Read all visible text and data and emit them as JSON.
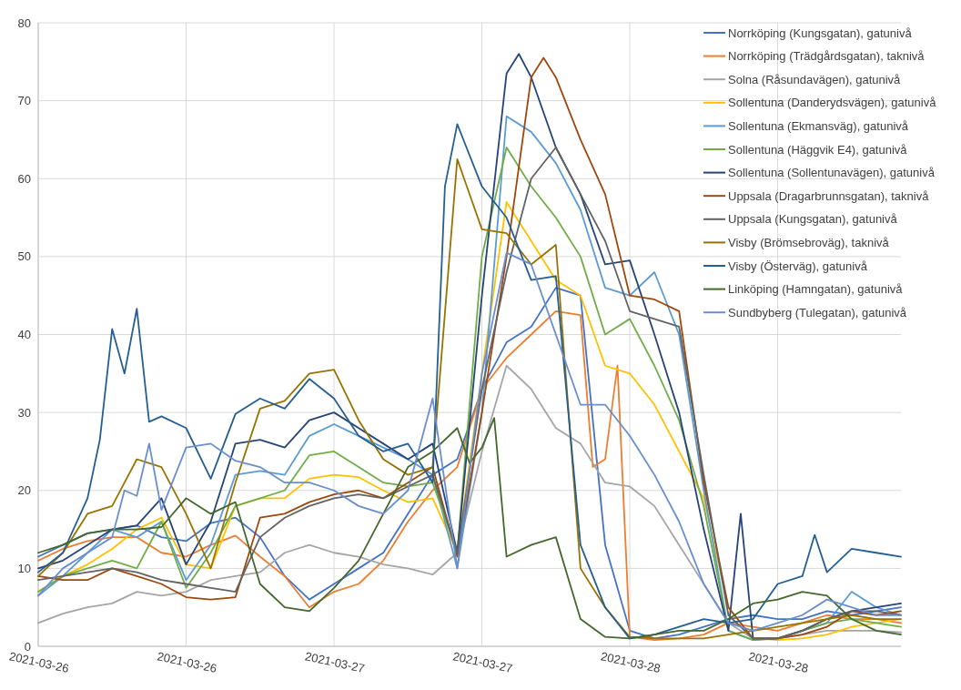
{
  "chart_data": {
    "type": "line",
    "x": [
      "2021-03-26T00:00",
      "2021-03-26T02:00",
      "2021-03-26T04:00",
      "2021-03-26T06:00",
      "2021-03-26T08:00",
      "2021-03-26T10:00",
      "2021-03-26T12:00",
      "2021-03-26T14:00",
      "2021-03-26T16:00",
      "2021-03-26T18:00",
      "2021-03-26T20:00",
      "2021-03-26T22:00",
      "2021-03-27T00:00",
      "2021-03-27T02:00",
      "2021-03-27T04:00",
      "2021-03-27T06:00",
      "2021-03-27T08:00",
      "2021-03-27T10:00",
      "2021-03-27T12:00",
      "2021-03-27T14:00",
      "2021-03-27T16:00",
      "2021-03-27T18:00",
      "2021-03-27T20:00",
      "2021-03-27T22:00",
      "2021-03-28T00:00",
      "2021-03-28T02:00",
      "2021-03-28T04:00",
      "2021-03-28T06:00",
      "2021-03-28T08:00",
      "2021-03-28T10:00",
      "2021-03-28T12:00",
      "2021-03-28T14:00",
      "2021-03-28T16:00",
      "2021-03-28T18:00",
      "2021-03-28T20:00",
      "2021-03-28T22:00"
    ],
    "xlim": [
      "2021-03-26T00:00",
      "2021-03-28T22:00"
    ],
    "xticks": [
      {
        "value": "2021-03-26T00:00",
        "label": "2021-03-26"
      },
      {
        "value": "2021-03-26T12:00",
        "label": "2021-03-26"
      },
      {
        "value": "2021-03-27T00:00",
        "label": "2021-03-27"
      },
      {
        "value": "2021-03-27T12:00",
        "label": "2021-03-27"
      },
      {
        "value": "2021-03-28T00:00",
        "label": "2021-03-28"
      },
      {
        "value": "2021-03-28T12:00",
        "label": "2021-03-28"
      }
    ],
    "ylim": [
      0,
      80
    ],
    "yticks": [
      0,
      10,
      20,
      30,
      40,
      50,
      60,
      70,
      80
    ],
    "grid": true,
    "legend": "top right",
    "series": [
      {
        "name": "Norrköping (Kungsgatan), gatunivå",
        "color": "#4472c4",
        "values": [
          11.5,
          13,
          14.5,
          15,
          15.5,
          14,
          13.5,
          15.8,
          16.5,
          14,
          9,
          6,
          8,
          10,
          12,
          17,
          22,
          24,
          33,
          39,
          41,
          46,
          45,
          13,
          2,
          1,
          1.5,
          2.5,
          3.5,
          4,
          3.5,
          3.5,
          4.5,
          4,
          4.5,
          5
        ]
      },
      {
        "name": "Norrköping (Trädgårdsgatan), taknivå",
        "color": "#ed7d31",
        "x": [
          "2021-03-26T00:00",
          "2021-03-26T02:00",
          "2021-03-26T04:00",
          "2021-03-26T06:00",
          "2021-03-26T08:00",
          "2021-03-26T10:00",
          "2021-03-26T12:00",
          "2021-03-26T14:00",
          "2021-03-26T16:00",
          "2021-03-26T18:00",
          "2021-03-26T20:00",
          "2021-03-26T22:00",
          "2021-03-27T00:00",
          "2021-03-27T02:00",
          "2021-03-27T04:00",
          "2021-03-27T06:00",
          "2021-03-27T08:00",
          "2021-03-27T10:00",
          "2021-03-27T12:00",
          "2021-03-27T14:00",
          "2021-03-27T16:00",
          "2021-03-27T18:00",
          "2021-03-27T20:00",
          "2021-03-27T21:00",
          "2021-03-27T22:00",
          "2021-03-27T23:00",
          "2021-03-28T00:00",
          "2021-03-28T02:00",
          "2021-03-28T04:00",
          "2021-03-28T06:00",
          "2021-03-28T08:00",
          "2021-03-28T10:00",
          "2021-03-28T12:00",
          "2021-03-28T14:00",
          "2021-03-28T16:00",
          "2021-03-28T18:00",
          "2021-03-28T20:00",
          "2021-03-28T22:00"
        ],
        "values": [
          11,
          12.5,
          13.5,
          14,
          14,
          12,
          11.5,
          13,
          14.2,
          11.5,
          9,
          5,
          7,
          8,
          11,
          16,
          20,
          23,
          33,
          37,
          40,
          43,
          42.5,
          23,
          24,
          36,
          1.2,
          0.8,
          1,
          1.5,
          3,
          2.5,
          2,
          3,
          4,
          3.5,
          3.5,
          3
        ]
      },
      {
        "name": "Solna (Råsundavägen), gatunivå",
        "color": "#a5a5a5",
        "values": [
          3,
          4.2,
          5,
          5.5,
          7,
          6.5,
          7,
          8.5,
          9,
          9.5,
          12,
          13,
          12,
          11.5,
          10.5,
          10,
          9.2,
          12,
          25,
          36,
          33,
          28,
          26,
          21,
          20.5,
          18,
          13,
          8,
          3,
          1,
          1,
          1.5,
          2,
          2,
          2,
          1.8
        ]
      },
      {
        "name": "Sollentuna (Danderydsvägen), gatunivå",
        "color": "#ffc000",
        "values": [
          7,
          9,
          10.5,
          12.5,
          15,
          16.5,
          10.5,
          10,
          18,
          19,
          19,
          21.5,
          22,
          21.7,
          20,
          18.5,
          19,
          12,
          35,
          57,
          52,
          47,
          45,
          36,
          35,
          31,
          25,
          19,
          5,
          1,
          0.8,
          1,
          1.5,
          2.5,
          3,
          3.5
        ]
      },
      {
        "name": "Sollentuna (Ekmansväg), gatunivå",
        "color": "#5b9bd5",
        "values": [
          6.5,
          9,
          12,
          15,
          14,
          16,
          8.5,
          13,
          22,
          22.5,
          22,
          27,
          28.5,
          27,
          25.5,
          24,
          22,
          10,
          30,
          68,
          66,
          62,
          56,
          46,
          45,
          48,
          40,
          20,
          2,
          0.8,
          1,
          2,
          3,
          7,
          5,
          4
        ]
      },
      {
        "name": "Sollentuna (Häggvik E4), gatunivå",
        "color": "#70ad47",
        "values": [
          7,
          9,
          10,
          11,
          10,
          16,
          7.5,
          12,
          18,
          19,
          20,
          24.5,
          25,
          23,
          21,
          20.5,
          21,
          12,
          50,
          64,
          59,
          55,
          50,
          40,
          42,
          36,
          29,
          18,
          2,
          0.8,
          1,
          2,
          3,
          3.5,
          3,
          2.5
        ]
      },
      {
        "name": "Sollentuna (Sollentunavägen), gatunivå",
        "color": "#264478",
        "x": [
          "2021-03-26T00:00",
          "2021-03-26T02:00",
          "2021-03-26T04:00",
          "2021-03-26T06:00",
          "2021-03-26T08:00",
          "2021-03-26T10:00",
          "2021-03-26T12:00",
          "2021-03-26T14:00",
          "2021-03-26T16:00",
          "2021-03-26T18:00",
          "2021-03-26T20:00",
          "2021-03-26T22:00",
          "2021-03-27T00:00",
          "2021-03-27T02:00",
          "2021-03-27T04:00",
          "2021-03-27T06:00",
          "2021-03-27T08:00",
          "2021-03-27T10:00",
          "2021-03-27T12:00",
          "2021-03-27T14:00",
          "2021-03-27T15:00",
          "2021-03-27T16:00",
          "2021-03-27T18:00",
          "2021-03-27T20:00",
          "2021-03-27T22:00",
          "2021-03-28T00:00",
          "2021-03-28T02:00",
          "2021-03-28T04:00",
          "2021-03-28T06:00",
          "2021-03-28T08:00",
          "2021-03-28T09:00",
          "2021-03-28T10:00",
          "2021-03-28T12:00",
          "2021-03-28T14:00",
          "2021-03-28T16:00",
          "2021-03-28T18:00",
          "2021-03-28T20:00",
          "2021-03-28T22:00"
        ],
        "values": [
          10,
          11,
          13,
          15,
          15.5,
          19,
          10.5,
          16,
          26,
          26.5,
          25.5,
          29,
          30,
          28,
          26,
          24,
          26,
          12,
          45,
          73.5,
          76,
          73,
          64,
          58,
          49,
          49.5,
          40,
          30,
          15,
          2,
          17,
          1,
          1,
          2,
          3.5,
          4.5,
          5,
          5.5
        ]
      },
      {
        "name": "Uppsala (Dragarbrunnsgatan), taknivå",
        "color": "#9e480e",
        "x": [
          "2021-03-26T00:00",
          "2021-03-26T02:00",
          "2021-03-26T04:00",
          "2021-03-26T06:00",
          "2021-03-26T08:00",
          "2021-03-26T10:00",
          "2021-03-26T12:00",
          "2021-03-26T14:00",
          "2021-03-26T16:00",
          "2021-03-26T18:00",
          "2021-03-26T20:00",
          "2021-03-26T22:00",
          "2021-03-27T00:00",
          "2021-03-27T02:00",
          "2021-03-27T04:00",
          "2021-03-27T06:00",
          "2021-03-27T08:00",
          "2021-03-27T10:00",
          "2021-03-27T12:00",
          "2021-03-27T14:00",
          "2021-03-27T16:00",
          "2021-03-27T17:00",
          "2021-03-27T18:00",
          "2021-03-27T20:00",
          "2021-03-27T22:00",
          "2021-03-28T00:00",
          "2021-03-28T02:00",
          "2021-03-28T04:00",
          "2021-03-28T06:00",
          "2021-03-28T08:00",
          "2021-03-28T10:00",
          "2021-03-28T12:00",
          "2021-03-28T14:00",
          "2021-03-28T16:00",
          "2021-03-28T18:00",
          "2021-03-28T20:00",
          "2021-03-28T22:00"
        ],
        "values": [
          9,
          8.5,
          8.5,
          10,
          9,
          8,
          6.3,
          6,
          6.3,
          16.5,
          17,
          18.5,
          19.5,
          20,
          19,
          21,
          23,
          11.5,
          30,
          50,
          73,
          75.5,
          73,
          65,
          58,
          45,
          44.5,
          43,
          21,
          5,
          1,
          1,
          1.5,
          2.5,
          4.5,
          4,
          4.5
        ]
      },
      {
        "name": "Uppsala (Kungsgatan), gatunivå",
        "color": "#636363",
        "values": [
          8.5,
          9,
          9.5,
          10,
          9.5,
          8.5,
          8,
          7.5,
          7,
          14,
          16.5,
          18,
          19,
          19.5,
          19,
          20.5,
          22,
          12,
          33,
          48,
          60,
          64,
          58,
          52,
          43,
          42,
          41,
          22,
          4,
          1,
          1,
          2,
          3.5,
          4.5,
          4.5,
          4
        ]
      },
      {
        "name": "Visby (Brömsebroväg), taknivå",
        "color": "#997300",
        "values": [
          9,
          12,
          17,
          18,
          24,
          23,
          17,
          10,
          21,
          30.5,
          31.5,
          35,
          35.5,
          29,
          24,
          22,
          23,
          62.5,
          53.5,
          53,
          49,
          51.5,
          10,
          5,
          1.2,
          1,
          1,
          1,
          1.5,
          2,
          2.5,
          3,
          3.5,
          4,
          3.5,
          3.5
        ]
      },
      {
        "name": "Visby (Österväg), gatunivå",
        "color": "#255e91",
        "x": [
          "2021-03-26T00:00",
          "2021-03-26T02:00",
          "2021-03-26T04:00",
          "2021-03-26T05:00",
          "2021-03-26T06:00",
          "2021-03-26T07:00",
          "2021-03-26T08:00",
          "2021-03-26T09:00",
          "2021-03-26T10:00",
          "2021-03-26T12:00",
          "2021-03-26T14:00",
          "2021-03-26T16:00",
          "2021-03-26T18:00",
          "2021-03-26T20:00",
          "2021-03-26T22:00",
          "2021-03-27T00:00",
          "2021-03-27T02:00",
          "2021-03-27T04:00",
          "2021-03-27T06:00",
          "2021-03-27T08:00",
          "2021-03-27T09:00",
          "2021-03-27T10:00",
          "2021-03-27T12:00",
          "2021-03-27T14:00",
          "2021-03-27T16:00",
          "2021-03-27T18:00",
          "2021-03-27T20:00",
          "2021-03-27T22:00",
          "2021-03-28T00:00",
          "2021-03-28T02:00",
          "2021-03-28T04:00",
          "2021-03-28T06:00",
          "2021-03-28T08:00",
          "2021-03-28T10:00",
          "2021-03-28T12:00",
          "2021-03-28T14:00",
          "2021-03-28T15:00",
          "2021-03-28T16:00",
          "2021-03-28T18:00",
          "2021-03-28T20:00",
          "2021-03-28T22:00"
        ],
        "values": [
          9.5,
          12,
          19,
          26.5,
          40.7,
          35,
          43.3,
          28.8,
          29.5,
          28,
          21.5,
          29.8,
          31.8,
          30.5,
          34.3,
          31.8,
          27,
          25,
          26,
          21,
          59,
          67,
          59,
          55,
          47,
          47.5,
          13,
          5,
          1,
          1.5,
          2.5,
          3.5,
          3,
          3.5,
          8,
          9,
          14.3,
          9.5,
          12.5,
          12,
          11.5
        ]
      },
      {
        "name": "Linköping (Hamngatan), gatunivå",
        "color": "#43682b",
        "x": [
          "2021-03-26T00:00",
          "2021-03-26T02:00",
          "2021-03-26T04:00",
          "2021-03-26T06:00",
          "2021-03-26T08:00",
          "2021-03-26T10:00",
          "2021-03-26T12:00",
          "2021-03-26T14:00",
          "2021-03-26T16:00",
          "2021-03-26T18:00",
          "2021-03-26T20:00",
          "2021-03-26T22:00",
          "2021-03-27T00:00",
          "2021-03-27T02:00",
          "2021-03-27T04:00",
          "2021-03-27T06:00",
          "2021-03-27T08:00",
          "2021-03-27T10:00",
          "2021-03-27T11:00",
          "2021-03-27T12:00",
          "2021-03-27T13:00",
          "2021-03-27T14:00",
          "2021-03-27T16:00",
          "2021-03-27T18:00",
          "2021-03-27T20:00",
          "2021-03-27T22:00",
          "2021-03-28T00:00",
          "2021-03-28T02:00",
          "2021-03-28T04:00",
          "2021-03-28T06:00",
          "2021-03-28T08:00",
          "2021-03-28T10:00",
          "2021-03-28T12:00",
          "2021-03-28T14:00",
          "2021-03-28T16:00",
          "2021-03-28T18:00",
          "2021-03-28T20:00",
          "2021-03-28T22:00"
        ],
        "values": [
          12,
          13,
          14.5,
          15,
          15,
          15.3,
          19,
          17,
          18.5,
          8,
          5,
          4.5,
          7.5,
          11,
          17,
          23,
          25,
          28,
          23.5,
          25.5,
          29.3,
          11.5,
          13,
          14,
          3.5,
          1.2,
          1,
          1.5,
          2,
          2,
          3.5,
          5.5,
          6,
          7,
          6.5,
          3.5,
          2,
          1.5
        ]
      },
      {
        "name": "Sundbyberg (Tulegatan), gatunivå",
        "color": "#698ed0",
        "x": [
          "2021-03-26T00:00",
          "2021-03-26T02:00",
          "2021-03-26T04:00",
          "2021-03-26T06:00",
          "2021-03-26T07:00",
          "2021-03-26T08:00",
          "2021-03-26T09:00",
          "2021-03-26T10:00",
          "2021-03-26T12:00",
          "2021-03-26T14:00",
          "2021-03-26T16:00",
          "2021-03-26T18:00",
          "2021-03-26T20:00",
          "2021-03-26T22:00",
          "2021-03-27T00:00",
          "2021-03-27T02:00",
          "2021-03-27T04:00",
          "2021-03-27T06:00",
          "2021-03-27T08:00",
          "2021-03-27T10:00",
          "2021-03-27T12:00",
          "2021-03-27T14:00",
          "2021-03-27T16:00",
          "2021-03-27T18:00",
          "2021-03-27T20:00",
          "2021-03-27T22:00",
          "2021-03-28T00:00",
          "2021-03-28T02:00",
          "2021-03-28T04:00",
          "2021-03-28T06:00",
          "2021-03-28T08:00",
          "2021-03-28T10:00",
          "2021-03-28T12:00",
          "2021-03-28T14:00",
          "2021-03-28T16:00",
          "2021-03-28T18:00",
          "2021-03-28T20:00",
          "2021-03-28T22:00"
        ],
        "values": [
          6.5,
          10,
          12,
          14,
          20,
          19.3,
          26,
          17.5,
          25.5,
          26,
          23.8,
          23,
          21,
          21,
          20,
          18,
          17,
          20,
          31.8,
          10,
          35,
          50.5,
          49,
          40,
          31,
          31,
          27,
          22,
          16,
          8,
          3,
          2,
          3,
          4,
          6,
          5,
          4,
          4
        ]
      }
    ]
  }
}
